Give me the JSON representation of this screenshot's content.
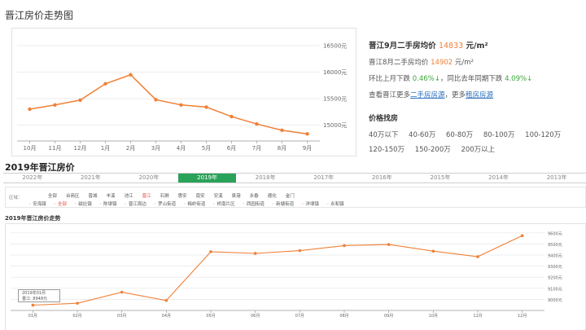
{
  "page_title": "晋江房价走势图",
  "info": {
    "headline_prefix": "晋江9月二手房均价",
    "headline_price": "14833",
    "headline_unit": "元/m²",
    "aug_prefix": "晋江8月二手房均价",
    "aug_price": "14902",
    "aug_unit": "元/m²",
    "mom_label": "环比上月下跌",
    "mom_value": "0.46%↓",
    "yoy_label": "，同比去年同期下跌",
    "yoy_value": "4.09%↓",
    "more_prefix": "查看晋江更多",
    "link_secondhand": "二手房房源",
    "more_mid": "，更多",
    "link_rent": "租房房源",
    "section_title": "价格找房",
    "price_ranges": [
      "40万以下",
      "40-60万",
      "60-80万",
      "80-100万",
      "100-120万",
      "120-150万",
      "150-200万",
      "200万以上"
    ]
  },
  "year_heading": "2019年晋江房价",
  "year_tabs": [
    "2022年",
    "2021年",
    "2020年",
    "2019年",
    "2018年",
    "2017年",
    "2016年",
    "2015年",
    "2014年",
    "2013年"
  ],
  "active_year": "2019年",
  "district": {
    "label": "区域：",
    "row1": [
      "全部",
      "台商区",
      "晋城",
      "丰溪",
      "池江",
      "晋江",
      "石狮",
      "惠安",
      "南安",
      "安溪",
      "泉港",
      "永春",
      "德化",
      "金门"
    ],
    "row1_active": "晋江",
    "row2": [
      "安海镇",
      "全部",
      "磁灶镇",
      "陈埭镇",
      "晋江周边",
      "罗山街道",
      "梅岭街道",
      "桥南片区",
      "西园街道",
      "新塘街道",
      "洋埭镇",
      "永和镇"
    ],
    "row2_active": "全部"
  },
  "trend_title": "2019年晋江房价走势",
  "tooltip": {
    "line1": "2019年01月",
    "line2": "晋江: 8948元"
  },
  "chart_data": [
    {
      "type": "line",
      "title": "",
      "categories": [
        "10月",
        "11月",
        "12月",
        "1月",
        "2月",
        "3月",
        "4月",
        "5月",
        "6月",
        "7月",
        "8月",
        "9月"
      ],
      "values": [
        15300,
        15380,
        15470,
        15780,
        15950,
        15480,
        15380,
        15340,
        15160,
        15020,
        14902,
        14833
      ],
      "ylim": [
        14700,
        16700
      ],
      "yticks": [
        15000,
        15500,
        16000,
        16500
      ],
      "ytick_labels": [
        "15000元",
        "15500元",
        "16000元",
        "16500元"
      ],
      "grid": true,
      "color": "#f08037"
    },
    {
      "type": "line",
      "title": "",
      "categories": [
        "01月",
        "02月",
        "03月",
        "04月",
        "05月",
        "06月",
        "07月",
        "08月",
        "09月",
        "10月",
        "11月",
        "12月"
      ],
      "values": [
        8948,
        8965,
        9065,
        8990,
        9430,
        9415,
        9440,
        9485,
        9495,
        9435,
        9385,
        9575
      ],
      "ylim": [
        8900,
        9650
      ],
      "yticks": [
        9000,
        9100,
        9200,
        9300,
        9400,
        9500,
        9600
      ],
      "ytick_labels": [
        "9000元",
        "9100元",
        "9200元",
        "9300元",
        "9400元",
        "9500元",
        "9600元"
      ],
      "grid": true,
      "color": "#f08037"
    }
  ]
}
